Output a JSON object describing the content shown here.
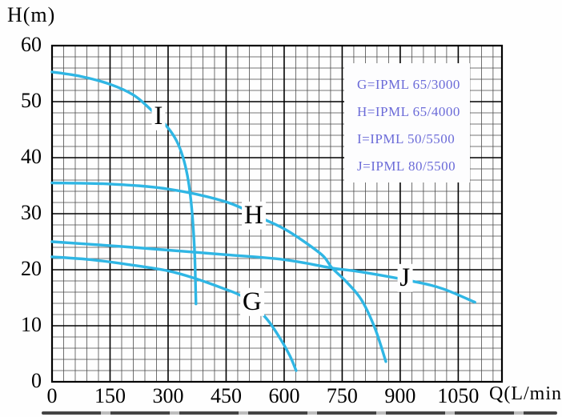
{
  "colors": {
    "curve": "#2fb6e4",
    "legend_text": "#6b6bd8",
    "grid_minor": "#4a4a4a",
    "grid_major": "#000000",
    "border": "#000000"
  },
  "legend": {
    "items": [
      "G=IPML 65/3000",
      "H=IPML 65/4000",
      "I=IPML 50/5500",
      "J=IPML 80/5500"
    ]
  },
  "chart_data": {
    "type": "line",
    "title": "",
    "xlabel": "Q(L/min)",
    "ylabel": "H(m)",
    "xlim": [
      0,
      1163
    ],
    "ylim": [
      0,
      60
    ],
    "x_major_ticks": [
      0,
      150,
      300,
      450,
      600,
      750,
      900,
      1050
    ],
    "x_minor_step": 30,
    "y_major_ticks": [
      0,
      10,
      20,
      30,
      40,
      50,
      60
    ],
    "y_minor_step": 2,
    "grid": true,
    "legend_position": "upper-right-inside",
    "series": [
      {
        "name": "G",
        "model": "IPML 65/3000",
        "label_pos": {
          "q": 517,
          "h": 14.2
        },
        "points": [
          [
            0,
            22.3
          ],
          [
            100,
            21.8
          ],
          [
            200,
            20.9
          ],
          [
            300,
            19.8
          ],
          [
            372,
            18.4
          ],
          [
            445,
            16.6
          ],
          [
            490,
            15.3
          ],
          [
            528,
            13.2
          ],
          [
            560,
            10.8
          ],
          [
            590,
            7.7
          ],
          [
            615,
            4.6
          ],
          [
            631,
            2.0
          ]
        ]
      },
      {
        "name": "H",
        "model": "IPML 65/4000",
        "label_pos": {
          "q": 521,
          "h": 29.6
        },
        "points": [
          [
            0,
            35.5
          ],
          [
            150,
            35.3
          ],
          [
            300,
            34.4
          ],
          [
            450,
            32.1
          ],
          [
            545,
            29.1
          ],
          [
            600,
            27.3
          ],
          [
            650,
            25.1
          ],
          [
            700,
            22.5
          ],
          [
            724,
            20.3
          ],
          [
            760,
            17.9
          ],
          [
            800,
            14.6
          ],
          [
            835,
            9.5
          ],
          [
            863,
            3.6
          ]
        ]
      },
      {
        "name": "I",
        "model": "IPML 50/5500",
        "label_pos": {
          "q": 275,
          "h": 47.3
        },
        "points": [
          [
            0,
            55.3
          ],
          [
            75,
            54.5
          ],
          [
            150,
            53.1
          ],
          [
            210,
            51.2
          ],
          [
            255,
            48.6
          ],
          [
            300,
            45.3
          ],
          [
            322,
            43.0
          ],
          [
            338,
            40.2
          ],
          [
            350,
            36.8
          ],
          [
            358,
            33.0
          ],
          [
            364,
            28.5
          ],
          [
            368,
            24.0
          ],
          [
            370,
            20.0
          ],
          [
            371,
            16.8
          ],
          [
            372,
            13.9
          ]
        ]
      },
      {
        "name": "J",
        "model": "IPML 80/5500",
        "label_pos": {
          "q": 912,
          "h": 18.4
        },
        "points": [
          [
            0,
            25.0
          ],
          [
            150,
            24.3
          ],
          [
            300,
            23.5
          ],
          [
            445,
            22.7
          ],
          [
            600,
            21.8
          ],
          [
            724,
            20.3
          ],
          [
            800,
            19.6
          ],
          [
            935,
            17.9
          ],
          [
            1010,
            16.6
          ],
          [
            1093,
            14.2
          ]
        ]
      }
    ]
  }
}
